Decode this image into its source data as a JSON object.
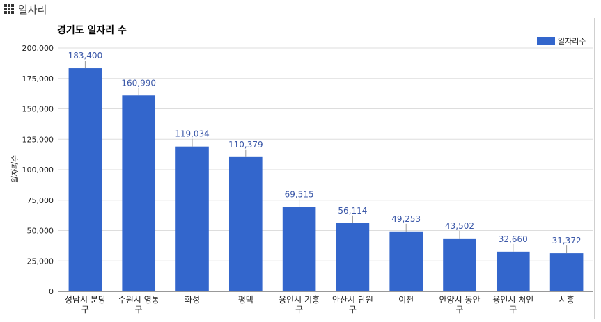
{
  "panel": {
    "title": "일자리",
    "icon": "grid-icon"
  },
  "chart_data": {
    "type": "bar",
    "title": "경기도 일자리 수",
    "ylabel": "일자리수",
    "xlabel": "",
    "ylim": [
      0,
      200000
    ],
    "yticks": [
      "0",
      "25,000",
      "50,000",
      "75,000",
      "100,000",
      "125,000",
      "150,000",
      "175,000",
      "200,000"
    ],
    "legend": {
      "position": "top-right",
      "label": "일자리수"
    },
    "grid": true,
    "bar_color": "#3366cc",
    "categories": [
      [
        "성남시 분당",
        "구"
      ],
      [
        "수원시 영통",
        "구"
      ],
      [
        "화성"
      ],
      [
        "평택"
      ],
      [
        "용인시 기흥",
        "구"
      ],
      [
        "안산시 단원",
        "구"
      ],
      [
        "이천"
      ],
      [
        "안양시 동안",
        "구"
      ],
      [
        "용인시 처인",
        "구"
      ],
      [
        "시흥"
      ]
    ],
    "series": [
      {
        "name": "일자리수",
        "values": [
          183400,
          160990,
          119034,
          110379,
          69515,
          56114,
          49253,
          43502,
          32660,
          31372
        ],
        "labels": [
          "183,400",
          "160,990",
          "119,034",
          "110,379",
          "69,515",
          "56,114",
          "49,253",
          "43,502",
          "32,660",
          "31,372"
        ]
      }
    ]
  }
}
